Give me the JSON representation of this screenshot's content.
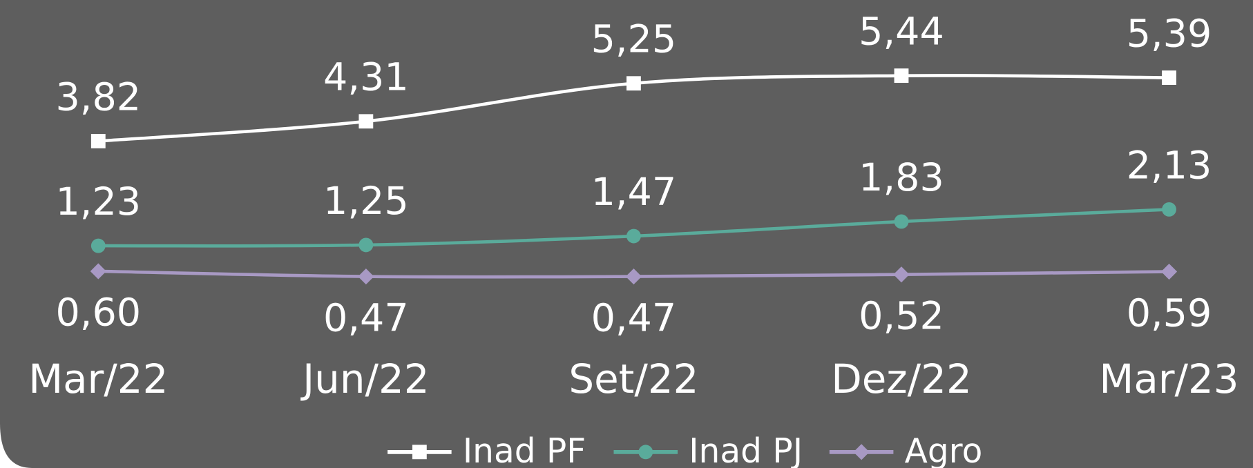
{
  "chart_data": {
    "type": "line",
    "categories": [
      "Mar/22",
      "Jun/22",
      "Set/22",
      "Dez/22",
      "Mar/23"
    ],
    "series": [
      {
        "name": "Inad PF",
        "color": "#ffffff",
        "marker": "square",
        "values": [
          3.82,
          4.31,
          5.25,
          5.44,
          5.39
        ],
        "value_labels": [
          "3,82",
          "4,31",
          "5,25",
          "5,44",
          "5,39"
        ]
      },
      {
        "name": "Inad PJ",
        "color": "#5aab9b",
        "marker": "circle",
        "values": [
          1.23,
          1.25,
          1.47,
          1.83,
          2.13
        ],
        "value_labels": [
          "1,23",
          "1,25",
          "1,47",
          "1,83",
          "2,13"
        ]
      },
      {
        "name": "Agro",
        "color": "#a899c4",
        "marker": "diamond",
        "values": [
          0.6,
          0.47,
          0.47,
          0.52,
          0.59
        ],
        "value_labels": [
          "0,60",
          "0,47",
          "0,47",
          "0,52",
          "0,59"
        ]
      }
    ]
  }
}
